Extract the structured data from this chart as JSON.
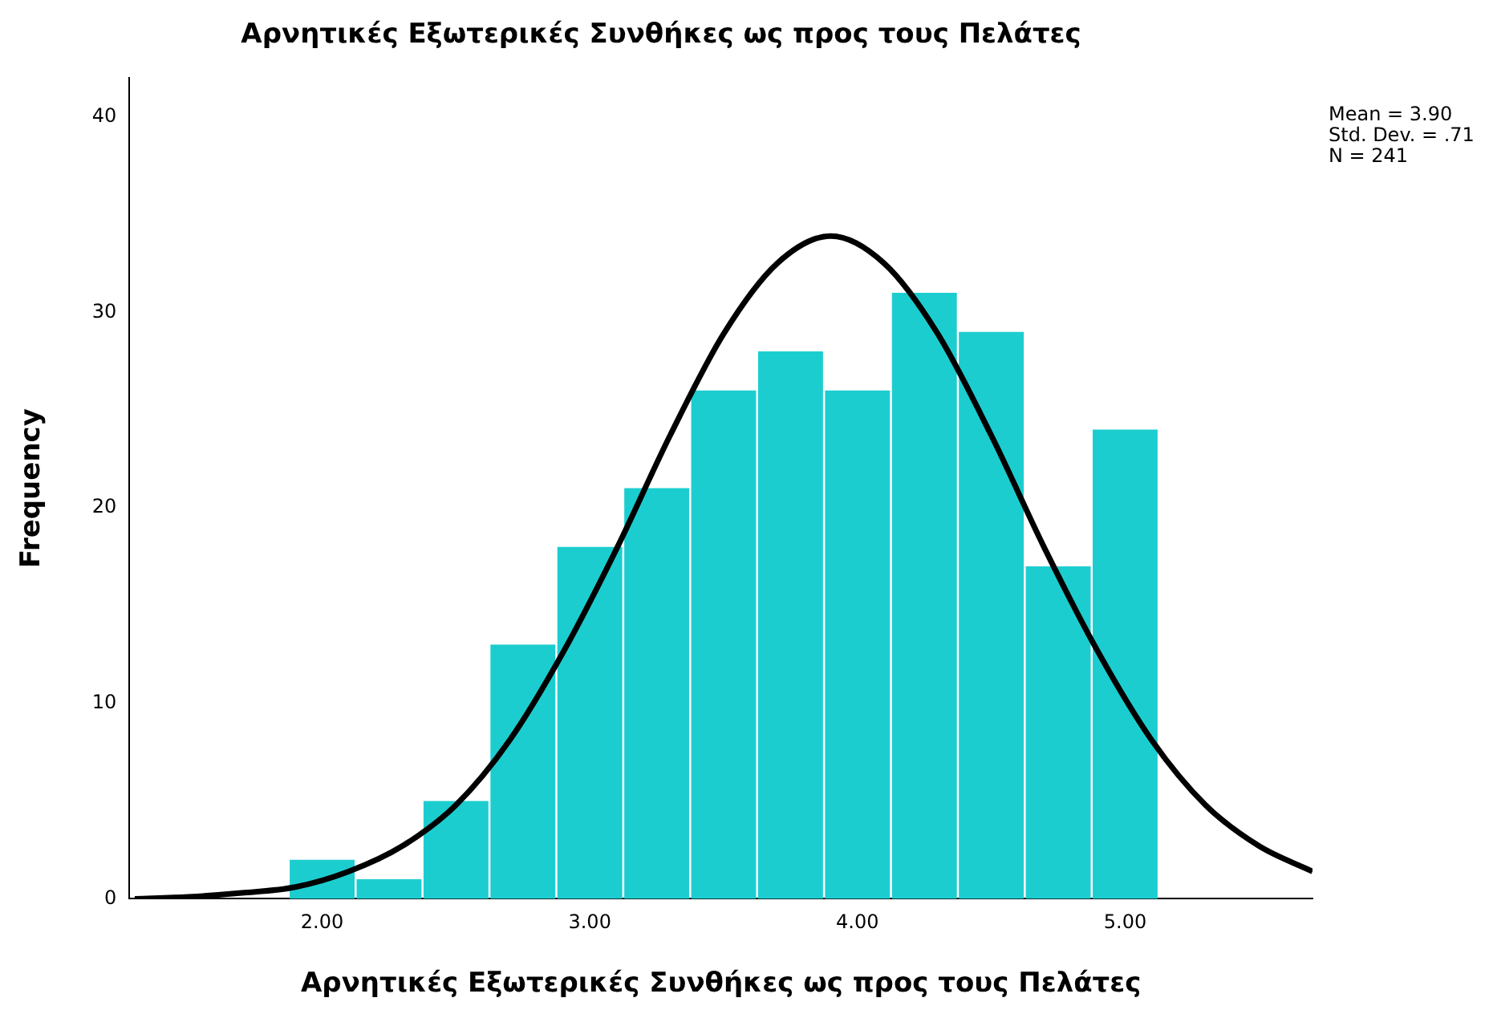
{
  "chart_data": {
    "type": "histogram",
    "title": "Αρνητικές Εξωτερικές Συνθήκες ως προς τους Πελάτες",
    "xlabel": "Αρνητικές Εξωτερικές Συνθήκες ως προς τους Πελάτες",
    "ylabel": "Frequency",
    "bins": [
      1.875,
      2.125,
      2.375,
      2.625,
      2.875,
      3.125,
      3.375,
      3.625,
      3.875,
      4.125,
      4.375,
      4.625,
      4.875,
      5.125
    ],
    "values": [
      2,
      1,
      5,
      13,
      18,
      21,
      26,
      28,
      26,
      31,
      29,
      17,
      24
    ],
    "color": "#1ccdd0",
    "series": [
      {
        "type": "line",
        "color": "#000000",
        "x": [
          1.3,
          1.5,
          1.7,
          1.9,
          2.1,
          2.3,
          2.5,
          2.7,
          2.9,
          3.1,
          3.3,
          3.5,
          3.7,
          3.9,
          4.1,
          4.3,
          4.5,
          4.7,
          4.9,
          5.1,
          5.3,
          5.5,
          5.7
        ],
        "values": [
          0,
          0.1,
          0.3,
          0.6,
          1.4,
          2.7,
          4.8,
          8.1,
          12.6,
          17.9,
          23.7,
          28.9,
          32.5,
          33.9,
          32.5,
          28.9,
          23.7,
          17.9,
          12.6,
          8.1,
          4.8,
          2.7,
          1.4
        ]
      }
    ],
    "xlim": [
      1.28,
      5.7
    ],
    "xticks": [
      {
        "value": 2,
        "label": "2.00"
      },
      {
        "value": 3,
        "label": "3.00"
      },
      {
        "value": 4,
        "label": "4.00"
      },
      {
        "value": 5,
        "label": "5.00"
      }
    ],
    "ylim": [
      0,
      42
    ],
    "yticks": [
      0,
      10,
      20,
      30,
      40
    ],
    "annotations": [
      "Mean = 3.90",
      "Std. Dev. = .71",
      "N = 241"
    ],
    "grid": false,
    "legend": false,
    "marker": "none",
    "line_style": "solid"
  }
}
